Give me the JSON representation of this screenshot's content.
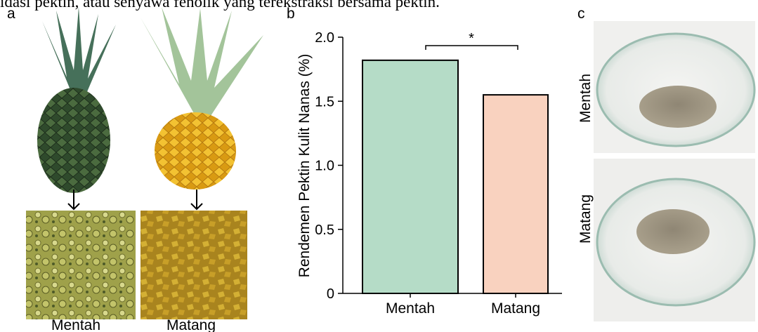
{
  "caption_fragment": "idasi pektin, atau senyawa fenolik yang terekstraksi bersama pektin.",
  "panel_a": {
    "label": "a",
    "items": [
      {
        "label": "Mentah"
      },
      {
        "label": "Matang"
      }
    ]
  },
  "chart_data": {
    "type": "bar",
    "panel_label": "b",
    "ylabel": "Rendemen Pektin Kulit Nanas (%)",
    "categories": [
      "Mentah",
      "Matang"
    ],
    "values": [
      1.82,
      1.55
    ],
    "colors": [
      "#b5dcc7",
      "#f9d2bf"
    ],
    "ylim": [
      0,
      2
    ],
    "yticks": [
      0,
      0.5,
      {
        "value": 1,
        "label": "1.0"
      },
      1.5,
      {
        "value": 2,
        "label": "2.0"
      }
    ],
    "annotation": "*"
  },
  "panel_c": {
    "label": "c",
    "items": [
      {
        "label": "Mentah"
      },
      {
        "label": "Matang"
      }
    ]
  }
}
